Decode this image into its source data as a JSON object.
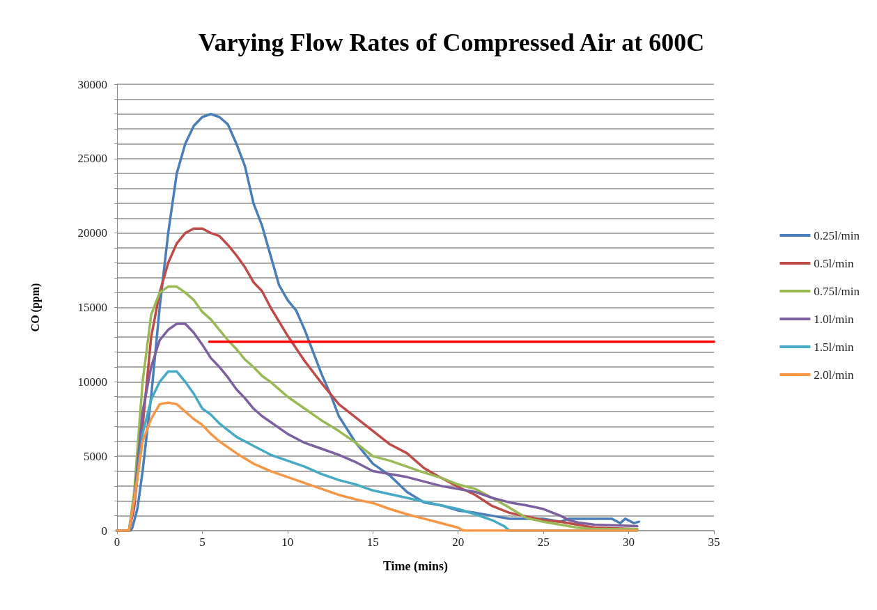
{
  "chart_data": {
    "type": "line",
    "title": "Varying Flow Rates of Compressed Air at 600C",
    "xlabel": "Time (mins)",
    "ylabel": "CO (ppm)",
    "xlim": [
      0,
      35
    ],
    "xticks": [
      0,
      5,
      10,
      15,
      20,
      25,
      30,
      35
    ],
    "ylim": [
      0,
      30000
    ],
    "yticks": [
      0,
      {
        "value": 1000,
        "label": null
      },
      {
        "value": 2000,
        "label": null
      },
      {
        "value": 3000,
        "label": null
      },
      {
        "value": 4000,
        "label": null
      },
      5000,
      {
        "value": 6000,
        "label": null
      },
      {
        "value": 7000,
        "label": null
      },
      {
        "value": 8000,
        "label": null
      },
      {
        "value": 9000,
        "label": null
      },
      10000,
      {
        "value": 11000,
        "label": null
      },
      {
        "value": 12000,
        "label": null
      },
      {
        "value": 13000,
        "label": null
      },
      {
        "value": 14000,
        "label": null
      },
      15000,
      {
        "value": 16000,
        "label": null
      },
      {
        "value": 17000,
        "label": null
      },
      {
        "value": 18000,
        "label": null
      },
      {
        "value": 19000,
        "label": null
      },
      20000,
      {
        "value": 21000,
        "label": null
      },
      {
        "value": 22000,
        "label": null
      },
      {
        "value": 23000,
        "label": null
      },
      {
        "value": 24000,
        "label": null
      },
      25000,
      {
        "value": 26000,
        "label": null
      },
      {
        "value": 27000,
        "label": null
      },
      {
        "value": 28000,
        "label": null
      },
      {
        "value": 29000,
        "label": null
      },
      30000
    ],
    "grid": "y",
    "legend": "right",
    "marker": "none",
    "line_style": "solid",
    "series": [
      {
        "name": "0.25l/min",
        "color": "#4a7ebb",
        "x": [
          0,
          0.8,
          0.9,
          1.2,
          1.5,
          2,
          2.5,
          3,
          3.5,
          4,
          4.5,
          5,
          5.5,
          6,
          6.5,
          7,
          7.5,
          8,
          8.5,
          9,
          9.5,
          10,
          10.5,
          11,
          11.5,
          12,
          12.5,
          13,
          14,
          15,
          16,
          17,
          18,
          19,
          20,
          21,
          22,
          23,
          25,
          26,
          26.5,
          27.5,
          29,
          29.5,
          29.8,
          30.3,
          30.6
        ],
        "values": [
          0,
          0,
          200,
          1500,
          4000,
          9000,
          15000,
          20000,
          24000,
          26000,
          27200,
          27800,
          28000,
          27800,
          27300,
          26000,
          24500,
          22000,
          20500,
          18500,
          16500,
          15500,
          14800,
          13500,
          12000,
          10500,
          9200,
          7700,
          5900,
          4500,
          3700,
          2600,
          1900,
          1700,
          1350,
          1200,
          1000,
          800,
          800,
          600,
          800,
          800,
          800,
          500,
          800,
          500,
          600
        ]
      },
      {
        "name": "0.5l/min",
        "color": "#be4b48",
        "x": [
          0,
          0.7,
          1,
          1.5,
          2,
          2.5,
          3,
          3.5,
          4,
          4.5,
          5,
          5.5,
          6,
          6.5,
          7,
          7.5,
          8,
          8.5,
          9,
          10,
          11,
          12,
          13,
          14,
          15,
          16,
          17,
          18,
          19,
          20,
          21,
          22,
          23,
          24,
          25,
          26,
          27,
          28,
          30.5
        ],
        "values": [
          0,
          0,
          1500,
          7000,
          13000,
          16000,
          18000,
          19300,
          20000,
          20300,
          20300,
          20000,
          19800,
          19200,
          18500,
          17700,
          16700,
          16100,
          15000,
          13100,
          11400,
          9900,
          8500,
          7600,
          6700,
          5800,
          5200,
          4200,
          3550,
          2950,
          2400,
          1650,
          1200,
          950,
          700,
          600,
          400,
          200,
          100
        ]
      },
      {
        "name": "0.75l/min",
        "color": "#98b954",
        "x": [
          0,
          0.7,
          1,
          1.5,
          2,
          2.5,
          3,
          3.5,
          4,
          4.5,
          5,
          5.5,
          6,
          6.5,
          7,
          7.5,
          8,
          8.5,
          9,
          10,
          11,
          12,
          13,
          14,
          15,
          16,
          17,
          18,
          19,
          20,
          21,
          22,
          23,
          24,
          25,
          26,
          27,
          28,
          30.5
        ],
        "values": [
          0,
          0,
          2500,
          10000,
          14500,
          16000,
          16400,
          16400,
          16000,
          15500,
          14700,
          14200,
          13500,
          12800,
          12200,
          11500,
          11000,
          10400,
          10000,
          9000,
          8200,
          7400,
          6700,
          5900,
          5000,
          4700,
          4300,
          3900,
          3550,
          3100,
          2800,
          2200,
          1550,
          850,
          600,
          400,
          200,
          100,
          100
        ]
      },
      {
        "name": "1.0l/min",
        "color": "#7d60a0",
        "x": [
          0,
          0.7,
          1,
          1.5,
          2,
          2.5,
          3,
          3.5,
          4,
          4.5,
          5,
          5.5,
          6,
          6.5,
          7,
          7.5,
          8,
          8.5,
          9,
          10,
          11,
          12,
          13,
          14,
          15,
          17,
          19,
          21,
          22,
          23,
          24,
          25,
          26,
          26.5,
          27,
          28,
          30.5
        ],
        "values": [
          0,
          0,
          2000,
          8000,
          11000,
          12800,
          13500,
          13900,
          13900,
          13300,
          12500,
          11600,
          11000,
          10300,
          9500,
          8900,
          8200,
          7700,
          7300,
          6500,
          5900,
          5500,
          5100,
          4600,
          4000,
          3600,
          3000,
          2600,
          2200,
          1900,
          1700,
          1450,
          1000,
          700,
          550,
          400,
          300
        ]
      },
      {
        "name": "1.5l/min",
        "color": "#46aac5",
        "x": [
          0,
          0.7,
          1,
          1.5,
          2,
          2.5,
          3,
          3.5,
          4,
          4.5,
          5,
          5.5,
          6,
          7,
          8,
          9,
          10,
          11,
          12,
          13,
          14,
          15,
          17,
          19,
          20,
          21,
          22,
          22.7,
          23,
          30.5
        ],
        "values": [
          0,
          0,
          2000,
          6500,
          8800,
          10000,
          10700,
          10700,
          10000,
          9200,
          8200,
          7800,
          7200,
          6300,
          5700,
          5100,
          4700,
          4300,
          3800,
          3400,
          3100,
          2700,
          2200,
          1700,
          1450,
          1100,
          700,
          300,
          0,
          0
        ]
      },
      {
        "name": "2.0l/min",
        "color": "#f79646",
        "x": [
          0,
          0.7,
          1,
          1.5,
          2,
          2.5,
          3,
          3.5,
          4,
          4.5,
          5,
          5.5,
          6,
          7,
          8,
          9,
          10,
          11,
          12,
          13,
          14,
          15,
          16,
          17,
          18,
          19,
          20,
          20.3,
          30.5
        ],
        "values": [
          0,
          0,
          2000,
          6000,
          7500,
          8500,
          8600,
          8500,
          8000,
          7500,
          7100,
          6500,
          6000,
          5200,
          4500,
          4000,
          3600,
          3200,
          2800,
          2400,
          2100,
          1850,
          1450,
          1100,
          800,
          500,
          200,
          0,
          0
        ]
      },
      {
        "color": "#ff0000",
        "x": [
          5.4,
          35
        ],
        "values": [
          12700,
          12700
        ]
      }
    ]
  }
}
